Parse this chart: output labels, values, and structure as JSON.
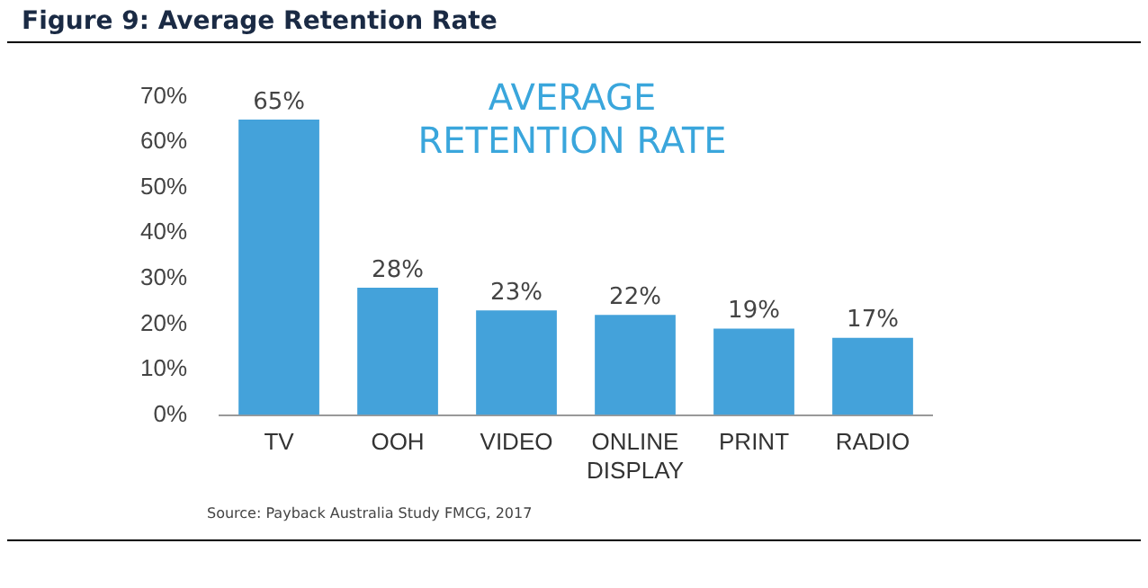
{
  "chart_data": {
    "type": "bar",
    "title": "Figure 9:  Average Retention Rate",
    "subtitle": "AVERAGE RETENTION RATE",
    "categories": [
      "TV",
      "OOH",
      "VIDEO",
      "ONLINE DISPLAY",
      "PRINT",
      "RADIO"
    ],
    "values": [
      65,
      28,
      23,
      22,
      19,
      17
    ],
    "color": "#44a2da",
    "value_labels": [
      "65%",
      "28%",
      "23%",
      "22%",
      "19%",
      "17%"
    ],
    "ylim": [
      0,
      70
    ],
    "yticks": [
      {
        "value": 0,
        "label": "0%"
      },
      {
        "value": 10,
        "label": "10%"
      },
      {
        "value": 20,
        "label": "20%"
      },
      {
        "value": 30,
        "label": "30%"
      },
      {
        "value": 40,
        "label": "40%"
      },
      {
        "value": 50,
        "label": "50%"
      },
      {
        "value": 60,
        "label": "60%"
      },
      {
        "value": 70,
        "label": "70%"
      }
    ],
    "grid": false,
    "legend": false,
    "annotations": [
      "Source: Payback Australia Study FMCG, 2017"
    ]
  }
}
